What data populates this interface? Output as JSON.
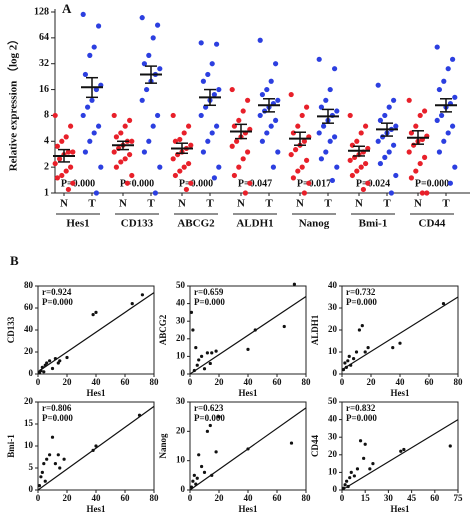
{
  "chart_data": [
    {
      "type": "strip",
      "panel": "A",
      "ylabel": "Relative expression （log 2）",
      "log_base": 2,
      "ylim": [
        1,
        128
      ],
      "yticks": [
        1,
        2,
        4,
        8,
        16,
        32,
        64,
        128
      ],
      "groups": [
        {
          "name": "Hes1",
          "p_label": "P=0.000",
          "series": [
            {
              "name": "N",
              "color": "#e8202a",
              "values": [
                8,
                6,
                4.5,
                4,
                3.5,
                3,
                3,
                2.8,
                2.5,
                2.2,
                2,
                1.8,
                1.6,
                1.5,
                1.3,
                1.1
              ],
              "mean": 2.7,
              "upper": 3.2,
              "lower": 2.3
            },
            {
              "name": "T",
              "color": "#2c3fe0",
              "values": [
                120,
                88,
                50,
                40,
                24,
                18,
                16,
                12,
                10,
                8,
                6,
                5,
                4,
                3,
                2,
                1
              ],
              "mean": 17,
              "upper": 22,
              "lower": 13
            }
          ]
        },
        {
          "name": "CD133",
          "p_label": "P=0.000",
          "series": [
            {
              "name": "N",
              "color": "#e8202a",
              "values": [
                8,
                7,
                6,
                5,
                4.5,
                4,
                4,
                3.6,
                3.3,
                3,
                2.8,
                2.5,
                2.3,
                2,
                1.6,
                1.3
              ],
              "mean": 3.6,
              "upper": 4,
              "lower": 3.2
            },
            {
              "name": "T",
              "color": "#2c3fe0",
              "values": [
                110,
                90,
                64,
                40,
                32,
                28,
                24,
                20,
                16,
                12,
                8,
                6,
                4,
                3,
                2,
                1
              ],
              "mean": 24,
              "upper": 30,
              "lower": 19
            }
          ]
        },
        {
          "name": "ABCG2",
          "p_label": "P=0.000",
          "series": [
            {
              "name": "N",
              "color": "#e8202a",
              "values": [
                8,
                6,
                5,
                4.2,
                4,
                3.6,
                3.3,
                3,
                2.8,
                2.5,
                2.2,
                2,
                1.8,
                1.6,
                1.3,
                1.1
              ],
              "mean": 3.3,
              "upper": 3.8,
              "lower": 2.9
            },
            {
              "name": "T",
              "color": "#2c3fe0",
              "values": [
                56,
                54,
                32,
                24,
                20,
                16,
                14,
                12,
                10,
                8,
                6,
                5,
                4,
                3,
                2,
                1.5
              ],
              "mean": 13,
              "upper": 16,
              "lower": 10.5
            }
          ]
        },
        {
          "name": "ALDH1",
          "p_label": "P=0.047",
          "series": [
            {
              "name": "N",
              "color": "#e8202a",
              "values": [
                16,
                12,
                9,
                7,
                6,
                5.5,
                5,
                4.5,
                4,
                3.5,
                3,
                2.5,
                2,
                1.6,
                1.3,
                1
              ],
              "mean": 5.2,
              "upper": 6.3,
              "lower": 4.3
            },
            {
              "name": "T",
              "color": "#2c3fe0",
              "values": [
                60,
                32,
                20,
                16,
                14,
                12,
                11,
                10,
                9,
                8,
                7,
                6,
                5,
                4,
                3,
                2
              ],
              "mean": 10.5,
              "upper": 12.5,
              "lower": 8.8
            }
          ]
        },
        {
          "name": "Nanog",
          "p_label": "P=0.017",
          "series": [
            {
              "name": "N",
              "color": "#e8202a",
              "values": [
                14,
                10,
                8,
                6,
                5,
                4.5,
                4,
                3.6,
                3.2,
                2.8,
                2.4,
                2,
                1.8,
                1.5,
                1.3,
                1
              ],
              "mean": 4.3,
              "upper": 5.1,
              "lower": 3.6
            },
            {
              "name": "T",
              "color": "#2c3fe0",
              "values": [
                36,
                28,
                16,
                12,
                10,
                9,
                8,
                7,
                6,
                5,
                4.5,
                4,
                3,
                2.5,
                2,
                1.4
              ],
              "mean": 7.8,
              "upper": 9.4,
              "lower": 6.5
            }
          ]
        },
        {
          "name": "Bmi-1",
          "p_label": "P=0.024",
          "series": [
            {
              "name": "N",
              "color": "#e8202a",
              "values": [
                8,
                6,
                5,
                4,
                3.6,
                3.3,
                3,
                2.8,
                2.6,
                2.4,
                2.2,
                2,
                1.8,
                1.6,
                1.3,
                1.1
              ],
              "mean": 3.1,
              "upper": 3.5,
              "lower": 2.7
            },
            {
              "name": "T",
              "color": "#2c3fe0",
              "values": [
                18,
                12,
                10,
                8,
                7,
                6,
                5.5,
                5,
                4.5,
                4,
                3.6,
                3,
                2.6,
                2.2,
                1.6,
                1
              ],
              "mean": 5.5,
              "upper": 6.5,
              "lower": 4.6
            }
          ]
        },
        {
          "name": "CD44",
          "p_label": "P=0.000",
          "series": [
            {
              "name": "N",
              "color": "#e8202a",
              "values": [
                12,
                9,
                8,
                6,
                5,
                4.6,
                4.2,
                4,
                3.6,
                3,
                2.6,
                2.2,
                1.8,
                1.5,
                1,
                1
              ],
              "mean": 4.4,
              "upper": 5.3,
              "lower": 3.7
            },
            {
              "name": "T",
              "color": "#2c3fe0",
              "values": [
                50,
                36,
                28,
                20,
                16,
                13,
                11,
                10,
                8,
                7,
                6,
                5,
                4,
                3,
                2,
                1.3
              ],
              "mean": 10.5,
              "upper": 12.5,
              "lower": 8.8
            }
          ]
        }
      ]
    },
    {
      "type": "scatter",
      "panel": "B",
      "xlabel": "Hes1",
      "ylabel": "CD133",
      "r_label": "r=0.924",
      "p_label": "P=0.000",
      "xlim": [
        0,
        80
      ],
      "xticks": [
        0,
        20,
        40,
        60,
        80
      ],
      "ylim": [
        0,
        80
      ],
      "yticks": [
        0,
        20,
        40,
        60,
        80
      ],
      "x": [
        1,
        2,
        3,
        4,
        5,
        6,
        8,
        10,
        12,
        14,
        15,
        20,
        38,
        40,
        65,
        72
      ],
      "y": [
        1,
        3,
        6,
        2,
        8,
        10,
        12,
        5,
        14,
        10,
        12,
        15,
        54,
        56,
        64,
        72
      ],
      "fit_line": {
        "x": [
          0,
          80
        ],
        "y": [
          2,
          74
        ]
      }
    },
    {
      "type": "scatter",
      "xlabel": "Hes1",
      "ylabel": "ABCG2",
      "r_label": "r=0.659",
      "p_label": "P=0.000",
      "xlim": [
        0,
        80
      ],
      "xticks": [
        0,
        20,
        40,
        60,
        80
      ],
      "ylim": [
        0,
        50
      ],
      "yticks": [
        0,
        10,
        20,
        30,
        40,
        50
      ],
      "x": [
        1,
        2,
        3,
        4,
        5,
        6,
        8,
        10,
        12,
        14,
        15,
        18,
        40,
        45,
        65,
        72
      ],
      "y": [
        35,
        25,
        2,
        15,
        5,
        8,
        10,
        3,
        12,
        6,
        12,
        13,
        14,
        25,
        27,
        51
      ],
      "fit_line": {
        "x": [
          0,
          80
        ],
        "y": [
          0,
          44
        ]
      }
    },
    {
      "type": "scatter",
      "xlabel": "Hes1",
      "ylabel": "ALDH1",
      "r_label": "r=0.732",
      "p_label": "P=0.000",
      "xlim": [
        0,
        80
      ],
      "xticks": [
        0,
        20,
        40,
        60,
        80
      ],
      "ylim": [
        0,
        40
      ],
      "yticks": [
        0,
        10,
        20,
        30,
        40
      ],
      "x": [
        1,
        2,
        3,
        4,
        5,
        6,
        8,
        10,
        12,
        14,
        16,
        18,
        35,
        40,
        70
      ],
      "y": [
        2,
        5,
        3,
        6,
        8,
        4,
        7,
        10,
        20,
        22,
        10,
        12,
        12,
        14,
        32
      ],
      "fit_line": {
        "x": [
          0,
          80
        ],
        "y": [
          2,
          35
        ]
      }
    },
    {
      "type": "scatter",
      "xlabel": "Hes1",
      "ylabel": "Bmi-1",
      "r_label": "r=0.806",
      "p_label": "P=0.000",
      "xlim": [
        0,
        80
      ],
      "xticks": [
        0,
        20,
        40,
        60,
        80
      ],
      "ylim": [
        0,
        20
      ],
      "yticks": [
        0,
        5,
        10,
        15,
        20
      ],
      "x": [
        1,
        2,
        3,
        4,
        5,
        6,
        8,
        10,
        12,
        14,
        15,
        18,
        38,
        40,
        70
      ],
      "y": [
        1,
        3,
        4,
        6,
        2,
        7,
        8,
        12,
        6,
        8,
        5,
        7,
        9,
        10,
        17
      ],
      "fit_line": {
        "x": [
          0,
          80
        ],
        "y": [
          0,
          19
        ]
      }
    },
    {
      "type": "scatter",
      "xlabel": "Hes1",
      "ylabel": "Nanog",
      "r_label": "r=0.623",
      "p_label": "P=0.000",
      "xlim": [
        0,
        80
      ],
      "xticks": [
        0,
        20,
        40,
        60,
        80
      ],
      "ylim": [
        0,
        30
      ],
      "yticks": [
        0,
        10,
        20,
        30
      ],
      "x": [
        1,
        2,
        3,
        4,
        5,
        6,
        8,
        10,
        12,
        14,
        15,
        18,
        20,
        40,
        70
      ],
      "y": [
        1,
        3,
        5,
        2,
        4,
        12,
        8,
        6,
        20,
        22,
        5,
        13,
        25,
        14,
        16
      ],
      "fit_line": {
        "x": [
          0,
          80
        ],
        "y": [
          0,
          28
        ]
      }
    },
    {
      "type": "scatter",
      "xlabel": "Hes1",
      "ylabel": "CD44",
      "r_label": "r=0.832",
      "p_label": "P=0.000",
      "xlim": [
        0,
        75
      ],
      "xticks": [
        0,
        15,
        30,
        45,
        60,
        75
      ],
      "ylim": [
        0,
        50
      ],
      "yticks": [
        0,
        10,
        20,
        30,
        40,
        50
      ],
      "x": [
        1,
        2,
        3,
        4,
        5,
        6,
        8,
        10,
        12,
        14,
        15,
        18,
        20,
        38,
        40,
        70
      ],
      "y": [
        1,
        3,
        5,
        2,
        7,
        10,
        8,
        12,
        28,
        18,
        26,
        12,
        15,
        22,
        23,
        25
      ],
      "fit_line": {
        "x": [
          0,
          75
        ],
        "y": [
          0,
          40
        ]
      }
    }
  ]
}
